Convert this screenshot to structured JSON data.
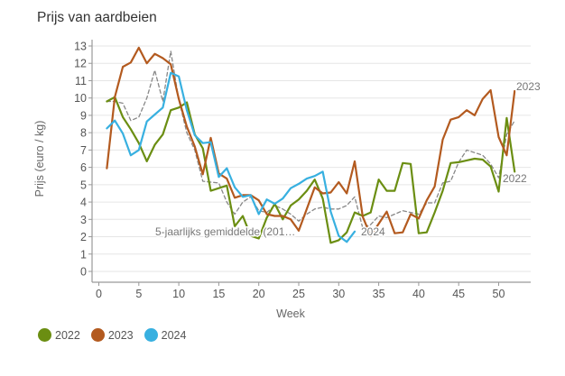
{
  "title": "Prijs van aardbeien",
  "legend": [
    {
      "label": "2022",
      "color": "#6b8e12"
    },
    {
      "label": "2023",
      "color": "#b35a1f"
    },
    {
      "label": "2024",
      "color": "#38b0e0"
    }
  ],
  "chart_data": {
    "type": "line",
    "title": "Prijs van aardbeien",
    "xlabel": "Week",
    "ylabel": "Prijs (euro / kg)",
    "xlim": [
      0,
      53
    ],
    "ylim": [
      0,
      13
    ],
    "xticks": [
      0,
      5,
      10,
      15,
      20,
      25,
      30,
      35,
      40,
      45,
      50
    ],
    "yticks": [
      0,
      1,
      2,
      3,
      4,
      5,
      6,
      7,
      8,
      9,
      10,
      11,
      12,
      13
    ],
    "grid": "horizontal",
    "legend_position": "bottom-left",
    "series": [
      {
        "name": "2022",
        "color": "#6b8e12",
        "style": "solid",
        "end_label": "2022",
        "x": [
          1,
          2,
          3,
          4,
          5,
          6,
          7,
          8,
          9,
          10,
          11,
          12,
          13,
          14,
          15,
          16,
          17,
          18,
          19,
          20,
          21,
          22,
          23,
          24,
          25,
          26,
          27,
          28,
          29,
          30,
          31,
          32,
          33,
          34,
          35,
          36,
          37,
          38,
          39,
          40,
          41,
          42,
          43,
          44,
          45,
          46,
          47,
          48,
          49,
          50,
          51,
          52
        ],
        "values": [
          9.8,
          10.05,
          8.9,
          8.2,
          7.4,
          6.35,
          7.3,
          7.9,
          9.3,
          9.45,
          9.75,
          7.9,
          7.1,
          4.65,
          4.8,
          4.95,
          2.6,
          3.2,
          2.05,
          1.9,
          3.1,
          3.9,
          3.0,
          3.8,
          4.15,
          4.65,
          5.3,
          4.2,
          1.65,
          1.8,
          2.25,
          3.4,
          3.2,
          3.4,
          5.3,
          4.65,
          4.65,
          6.25,
          6.2,
          2.2,
          2.25,
          3.4,
          4.65,
          6.25,
          6.3,
          6.4,
          6.5,
          6.45,
          6.05,
          4.6,
          8.85,
          5.75
        ]
      },
      {
        "name": "2023",
        "color": "#b35a1f",
        "style": "solid",
        "end_label": "2023",
        "x": [
          1,
          2,
          3,
          4,
          5,
          6,
          7,
          8,
          9,
          10,
          11,
          12,
          13,
          14,
          15,
          16,
          17,
          18,
          19,
          20,
          21,
          22,
          23,
          24,
          25,
          26,
          27,
          28,
          29,
          30,
          31,
          32,
          33,
          34,
          35,
          36,
          37,
          38,
          39,
          40,
          41,
          42,
          43,
          44,
          45,
          46,
          47,
          48,
          49,
          50,
          51,
          52
        ],
        "values": [
          5.95,
          10.05,
          11.8,
          12.05,
          12.9,
          12.0,
          12.55,
          12.3,
          11.95,
          9.95,
          8.35,
          7.2,
          5.6,
          7.7,
          5.65,
          5.35,
          4.25,
          4.4,
          4.4,
          4.1,
          3.3,
          3.2,
          3.2,
          3.0,
          2.35,
          3.6,
          4.85,
          4.5,
          4.55,
          5.15,
          4.5,
          6.35,
          3.15,
          2.05,
          2.75,
          3.45,
          2.2,
          2.25,
          3.3,
          3.05,
          4.1,
          4.9,
          7.6,
          8.75,
          8.9,
          9.3,
          9.0,
          9.95,
          10.45,
          7.75,
          6.7,
          10.4
        ]
      },
      {
        "name": "2024",
        "color": "#38b0e0",
        "style": "solid",
        "end_label": "2024",
        "x": [
          1,
          2,
          3,
          4,
          5,
          6,
          7,
          8,
          9,
          10,
          11,
          12,
          13,
          14,
          15,
          16,
          17,
          18,
          19,
          20,
          21,
          22,
          23,
          24,
          25,
          26,
          27,
          28,
          29,
          30,
          31,
          32
        ],
        "values": [
          8.25,
          8.7,
          7.95,
          6.7,
          7.0,
          8.65,
          9.05,
          9.45,
          11.45,
          11.25,
          9.3,
          7.85,
          7.4,
          7.45,
          5.45,
          5.95,
          4.85,
          4.3,
          4.4,
          3.3,
          4.15,
          3.9,
          4.2,
          4.8,
          5.05,
          5.35,
          5.5,
          5.75,
          3.45,
          2.05,
          1.7,
          2.3
        ]
      },
      {
        "name": "5-jaarlijks gemiddelde (201…",
        "color": "#888888",
        "style": "dashed",
        "end_label": "5-jaarlijks gemiddelde (201…",
        "x": [
          1,
          2,
          3,
          4,
          5,
          6,
          7,
          8,
          9,
          10,
          11,
          12,
          13,
          14,
          15,
          16,
          17,
          18,
          19,
          20,
          21,
          22,
          23,
          24,
          25,
          26,
          27,
          28,
          29,
          30,
          31,
          32,
          33,
          34,
          35,
          36,
          37,
          38,
          39,
          40,
          41,
          42,
          43,
          44,
          45,
          46,
          47,
          48,
          49,
          50,
          51,
          52
        ],
        "values": [
          9.8,
          9.8,
          9.7,
          8.7,
          8.9,
          10.0,
          11.6,
          9.8,
          12.7,
          9.9,
          8.0,
          7.0,
          5.2,
          5.15,
          5.1,
          4.0,
          3.3,
          4.0,
          4.3,
          3.5,
          3.4,
          3.8,
          3.6,
          3.3,
          2.9,
          3.3,
          3.6,
          3.7,
          3.6,
          3.6,
          3.8,
          4.3,
          2.5,
          2.7,
          3.2,
          3.1,
          3.3,
          3.5,
          3.4,
          3.3,
          3.95,
          3.95,
          5.1,
          5.2,
          6.3,
          7.0,
          6.85,
          6.7,
          6.2,
          5.4,
          7.9,
          8.7
        ]
      }
    ]
  }
}
